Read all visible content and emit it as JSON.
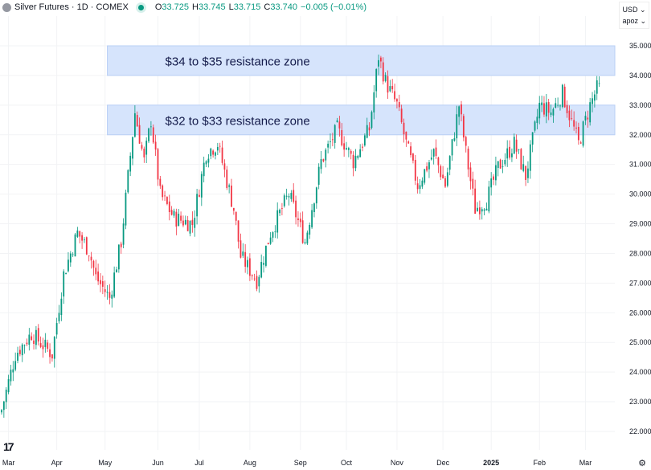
{
  "header": {
    "symbol": "Silver Futures · 1D · COMEX",
    "o_label": "O",
    "o": "33.725",
    "h_label": "H",
    "h": "33.745",
    "l_label": "L",
    "l": "33.715",
    "c_label": "C",
    "c": "33.740",
    "change": "−0.005 (−0.01%)"
  },
  "axis_controls": {
    "currency": "USD ⌄",
    "unit": "apoz ⌄"
  },
  "chart_data": {
    "type": "candlestick",
    "title": "Silver Futures · 1D · COMEX",
    "ylim": [
      21.5,
      35.5
    ],
    "y_ticks": [
      "22.000",
      "23.000",
      "24.000",
      "25.000",
      "26.000",
      "27.000",
      "28.000",
      "29.000",
      "30.000",
      "31.000",
      "32.000",
      "33.000",
      "34.000",
      "35.000"
    ],
    "x_ticks": [
      {
        "label": "Mar",
        "bar": 3
      },
      {
        "label": "Apr",
        "bar": 24
      },
      {
        "label": "May",
        "bar": 45
      },
      {
        "label": "Jun",
        "bar": 68
      },
      {
        "label": "Jul",
        "bar": 86
      },
      {
        "label": "Aug",
        "bar": 108
      },
      {
        "label": "Sep",
        "bar": 130
      },
      {
        "label": "Oct",
        "bar": 150
      },
      {
        "label": "Nov",
        "bar": 172
      },
      {
        "label": "Dec",
        "bar": 192
      },
      {
        "label": "2025",
        "bar": 213,
        "bold": true
      },
      {
        "label": "Feb",
        "bar": 234
      },
      {
        "label": "Mar",
        "bar": 254
      }
    ],
    "close_path": [
      [
        0,
        22.73
      ],
      [
        6,
        24.6
      ],
      [
        13,
        25.3
      ],
      [
        22,
        24.6
      ],
      [
        27,
        27.3
      ],
      [
        33,
        28.7
      ],
      [
        38,
        28.1
      ],
      [
        41,
        27.2
      ],
      [
        47,
        26.5
      ],
      [
        52,
        28.4
      ],
      [
        58,
        32.75
      ],
      [
        62,
        31.1
      ],
      [
        65,
        32.5
      ],
      [
        69,
        30.0
      ],
      [
        75,
        29.2
      ],
      [
        83,
        29.0
      ],
      [
        89,
        31.4
      ],
      [
        94,
        31.7
      ],
      [
        101,
        29.5
      ],
      [
        104,
        27.9
      ],
      [
        111,
        27.1
      ],
      [
        117,
        28.7
      ],
      [
        125,
        30.0
      ],
      [
        132,
        28.4
      ],
      [
        139,
        31.1
      ],
      [
        146,
        32.2
      ],
      [
        153,
        31.1
      ],
      [
        160,
        32.2
      ],
      [
        164,
        34.65
      ],
      [
        167,
        33.8
      ],
      [
        172,
        33.0
      ],
      [
        176,
        31.7
      ],
      [
        181,
        30.3
      ],
      [
        188,
        31.4
      ],
      [
        193,
        30.3
      ],
      [
        199,
        33.0
      ],
      [
        202,
        31.4
      ],
      [
        206,
        29.5
      ],
      [
        211,
        29.8
      ],
      [
        216,
        30.9
      ],
      [
        223,
        31.7
      ],
      [
        228,
        30.6
      ],
      [
        234,
        33.0
      ],
      [
        239,
        32.75
      ],
      [
        244,
        33.4
      ],
      [
        251,
        31.7
      ],
      [
        256,
        33.0
      ],
      [
        260,
        33.74
      ]
    ],
    "zones": [
      {
        "label": "$34 to $35 resistance zone",
        "low": 34,
        "high": 35,
        "start_bar": 46
      },
      {
        "label": "$32 to $33 resistance zone",
        "low": 32,
        "high": 33,
        "start_bar": 46
      }
    ],
    "up_color": "#089981",
    "down_color": "#f23645",
    "zone_color": "#d6e4fc"
  },
  "footer": {
    "logo": "TV",
    "settings": "⚙"
  }
}
